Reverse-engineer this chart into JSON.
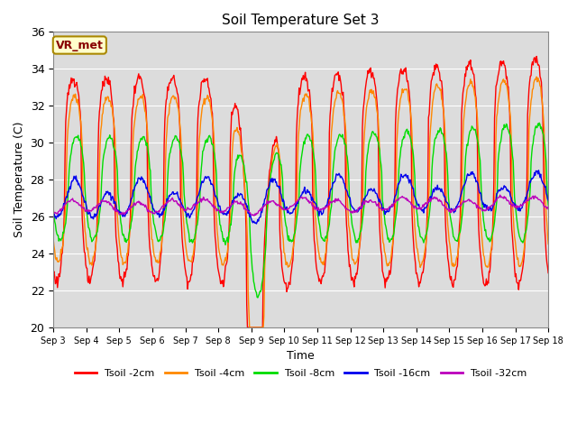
{
  "title": "Soil Temperature Set 3",
  "xlabel": "Time",
  "ylabel": "Soil Temperature (C)",
  "ylim": [
    20,
    36
  ],
  "yticks": [
    20,
    22,
    24,
    26,
    28,
    30,
    32,
    34,
    36
  ],
  "x_tick_labels": [
    "Sep 3",
    "Sep 4",
    "Sep 5",
    "Sep 6",
    "Sep 7",
    "Sep 8",
    "Sep 9",
    "Sep 10",
    "Sep 11",
    "Sep 12",
    "Sep 13",
    "Sep 14",
    "Sep 15",
    "Sep 16",
    "Sep 17",
    "Sep 18"
  ],
  "colors": {
    "Tsoil -2cm": "#FF0000",
    "Tsoil -4cm": "#FF8800",
    "Tsoil -8cm": "#00DD00",
    "Tsoil -16cm": "#0000EE",
    "Tsoil -32cm": "#BB00BB"
  },
  "bg_color": "#DCDCDC",
  "annotation_text": "VR_met",
  "annotation_bg": "#FFFFCC",
  "annotation_border": "#AA8800"
}
